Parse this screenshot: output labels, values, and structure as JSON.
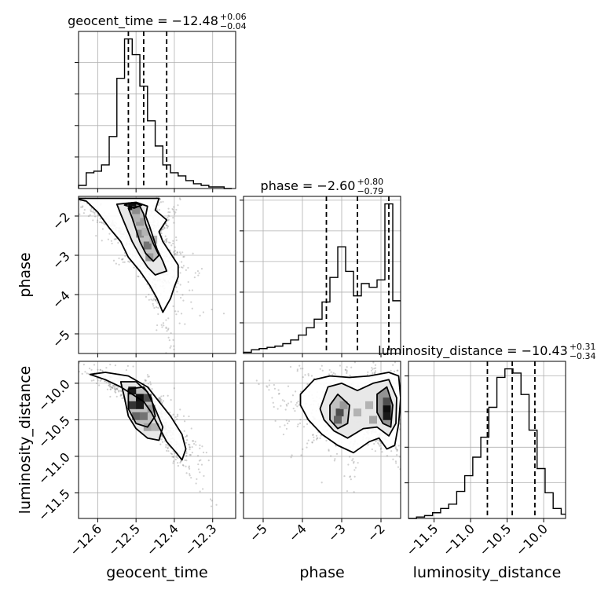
{
  "chart_data": {
    "type": "corner",
    "parameters": [
      {
        "key": "geocent_time",
        "label": "geocent_time",
        "title_prefix": "geocent_time = ",
        "median": "−12.48",
        "upper": "+0.06",
        "lower": "−0.04",
        "range": [
          -12.65,
          -12.24
        ],
        "ticks": [
          -12.6,
          -12.5,
          -12.4,
          -12.3
        ],
        "tick_labels": [
          "−12.6",
          "−12.5",
          "−12.4",
          "−12.3"
        ],
        "quantiles": [
          -12.52,
          -12.48,
          -12.42
        ],
        "hist_edges": [
          -12.65,
          -12.63,
          -12.61,
          -12.59,
          -12.57,
          -12.55,
          -12.53,
          -12.51,
          -12.49,
          -12.47,
          -12.45,
          -12.43,
          -12.41,
          -12.39,
          -12.37,
          -12.35,
          -12.33,
          -12.31,
          -12.29,
          -12.27,
          -12.25
        ],
        "hist_counts": [
          2,
          10,
          11,
          15,
          33,
          70,
          95,
          85,
          65,
          43,
          27,
          15,
          10,
          8,
          5,
          3,
          2,
          1,
          1,
          0
        ]
      },
      {
        "key": "phase",
        "label": "phase",
        "title_prefix": "phase = ",
        "median": "−2.60",
        "upper": "+0.80",
        "lower": "−0.79",
        "range": [
          -5.5,
          -1.5
        ],
        "ticks": [
          -5,
          -4,
          -3,
          -2
        ],
        "tick_labels": [
          "−5",
          "−4",
          "−3",
          "−2"
        ],
        "quantiles": [
          -3.39,
          -2.6,
          -1.8
        ],
        "hist_edges": [
          -5.5,
          -5.3,
          -5.1,
          -4.9,
          -4.7,
          -4.5,
          -4.3,
          -4.1,
          -3.9,
          -3.7,
          -3.5,
          -3.3,
          -3.1,
          -2.9,
          -2.7,
          -2.5,
          -2.3,
          -2.1,
          -1.9,
          -1.7,
          -1.5
        ],
        "hist_counts": [
          1,
          3,
          4,
          5,
          6,
          8,
          11,
          15,
          21,
          28,
          42,
          62,
          87,
          67,
          47,
          57,
          54,
          60,
          122,
          43
        ]
      },
      {
        "key": "luminosity_distance",
        "label": "luminosity_distance",
        "title_prefix": "luminosity_distance = ",
        "median": "−10.43",
        "upper": "+0.31",
        "lower": "−0.34",
        "range": [
          -11.85,
          -9.7
        ],
        "ticks": [
          -11.5,
          -11.0,
          -10.5,
          -10.0
        ],
        "tick_labels": [
          "−11.5",
          "−11.0",
          "−10.5",
          "−10.0"
        ],
        "quantiles": [
          -10.77,
          -10.43,
          -10.12
        ],
        "hist_edges": [
          -11.85,
          -11.74,
          -11.63,
          -11.52,
          -11.41,
          -11.3,
          -11.19,
          -11.08,
          -10.97,
          -10.86,
          -10.75,
          -10.64,
          -10.53,
          -10.42,
          -10.31,
          -10.2,
          -10.09,
          -9.98,
          -9.87,
          -9.76,
          -9.7
        ],
        "hist_counts": [
          0,
          1,
          2,
          4,
          7,
          10,
          19,
          30,
          43,
          57,
          78,
          99,
          105,
          102,
          87,
          62,
          35,
          18,
          7,
          3
        ]
      }
    ],
    "contours": [
      {
        "x": "geocent_time",
        "y": "phase",
        "levels": [
          [
            [
              -12.66,
              -1.55
            ],
            [
              -12.63,
              -1.62
            ],
            [
              -12.6,
              -1.9
            ],
            [
              -12.57,
              -2.3
            ],
            [
              -12.54,
              -2.65
            ],
            [
              -12.52,
              -3.05
            ],
            [
              -12.49,
              -3.4
            ],
            [
              -12.465,
              -3.75
            ],
            [
              -12.445,
              -4.1
            ],
            [
              -12.43,
              -4.45
            ],
            [
              -12.41,
              -4.1
            ],
            [
              -12.4,
              -3.8
            ],
            [
              -12.39,
              -3.55
            ],
            [
              -12.39,
              -3.25
            ],
            [
              -12.41,
              -2.95
            ],
            [
              -12.43,
              -2.65
            ],
            [
              -12.44,
              -2.4
            ],
            [
              -12.42,
              -2.1
            ],
            [
              -12.45,
              -1.85
            ],
            [
              -12.44,
              -1.55
            ]
          ],
          [
            [
              -12.55,
              -1.7
            ],
            [
              -12.54,
              -1.95
            ],
            [
              -12.525,
              -2.3
            ],
            [
              -12.51,
              -2.65
            ],
            [
              -12.49,
              -3.0
            ],
            [
              -12.47,
              -3.3
            ],
            [
              -12.45,
              -3.5
            ],
            [
              -12.42,
              -3.4
            ],
            [
              -12.43,
              -3.15
            ],
            [
              -12.445,
              -2.85
            ],
            [
              -12.455,
              -2.55
            ],
            [
              -12.465,
              -2.25
            ],
            [
              -12.475,
              -2.0
            ],
            [
              -12.47,
              -1.75
            ],
            [
              -12.5,
              -1.65
            ]
          ],
          [
            [
              -12.52,
              -1.8
            ],
            [
              -12.51,
              -2.05
            ],
            [
              -12.5,
              -2.35
            ],
            [
              -12.49,
              -2.65
            ],
            [
              -12.475,
              -2.95
            ],
            [
              -12.455,
              -3.15
            ],
            [
              -12.44,
              -3.0
            ],
            [
              -12.455,
              -2.7
            ],
            [
              -12.465,
              -2.45
            ],
            [
              -12.475,
              -2.2
            ],
            [
              -12.48,
              -1.95
            ],
            [
              -12.49,
              -1.75
            ]
          ],
          [
            [
              -12.53,
              -1.72
            ],
            [
              -12.51,
              -1.66
            ],
            [
              -12.485,
              -1.72
            ],
            [
              -12.505,
              -1.8
            ]
          ]
        ],
        "cells": [
          [
            -12.51,
            -1.75,
            0.95
          ],
          [
            -12.5,
            -1.85,
            0.45
          ],
          [
            -12.49,
            -2.15,
            0.4
          ],
          [
            -12.49,
            -2.45,
            0.45
          ],
          [
            -12.47,
            -2.75,
            0.55
          ],
          [
            -12.465,
            -3.05,
            0.4
          ],
          [
            -12.455,
            -2.6,
            0.3
          ],
          [
            -12.475,
            -2.4,
            0.3
          ],
          [
            -12.5,
            -2.05,
            0.3
          ]
        ]
      },
      {
        "x": "geocent_time",
        "y": "luminosity_distance",
        "levels": [
          [
            [
              -12.62,
              -9.88
            ],
            [
              -12.58,
              -9.95
            ],
            [
              -12.54,
              -10.05
            ],
            [
              -12.51,
              -10.15
            ],
            [
              -12.48,
              -10.25
            ],
            [
              -12.46,
              -10.4
            ],
            [
              -12.44,
              -10.6
            ],
            [
              -12.42,
              -10.8
            ],
            [
              -12.395,
              -10.95
            ],
            [
              -12.38,
              -11.05
            ],
            [
              -12.37,
              -10.9
            ],
            [
              -12.38,
              -10.7
            ],
            [
              -12.41,
              -10.45
            ],
            [
              -12.44,
              -10.25
            ],
            [
              -12.47,
              -10.05
            ],
            [
              -12.52,
              -9.9
            ],
            [
              -12.58,
              -9.85
            ]
          ],
          [
            [
              -12.54,
              -9.98
            ],
            [
              -12.53,
              -10.2
            ],
            [
              -12.52,
              -10.45
            ],
            [
              -12.5,
              -10.62
            ],
            [
              -12.47,
              -10.75
            ],
            [
              -12.44,
              -10.78
            ],
            [
              -12.43,
              -10.6
            ],
            [
              -12.45,
              -10.35
            ],
            [
              -12.47,
              -10.12
            ],
            [
              -12.5,
              -9.98
            ]
          ],
          [
            [
              -12.52,
              -10.08
            ],
            [
              -12.52,
              -10.35
            ],
            [
              -12.5,
              -10.55
            ],
            [
              -12.47,
              -10.6
            ],
            [
              -12.45,
              -10.45
            ],
            [
              -12.46,
              -10.2
            ],
            [
              -12.48,
              -10.05
            ]
          ]
        ],
        "cells": [
          [
            -12.51,
            -10.1,
            0.9
          ],
          [
            -12.49,
            -10.2,
            0.95
          ],
          [
            -12.51,
            -10.3,
            0.8
          ],
          [
            -12.49,
            -10.3,
            0.9
          ],
          [
            -12.47,
            -10.2,
            0.7
          ],
          [
            -12.5,
            -10.45,
            0.6
          ],
          [
            -12.48,
            -10.45,
            0.55
          ],
          [
            -12.46,
            -10.35,
            0.4
          ],
          [
            -12.47,
            -10.6,
            0.35
          ],
          [
            -12.45,
            -10.6,
            0.3
          ]
        ]
      },
      {
        "x": "phase",
        "y": "luminosity_distance",
        "levels": [
          [
            [
              -4.05,
              -10.15
            ],
            [
              -3.7,
              -9.95
            ],
            [
              -3.3,
              -9.9
            ],
            [
              -2.8,
              -9.92
            ],
            [
              -2.3,
              -9.9
            ],
            [
              -1.8,
              -9.85
            ],
            [
              -1.55,
              -9.9
            ],
            [
              -1.5,
              -10.2
            ],
            [
              -1.55,
              -10.55
            ],
            [
              -1.65,
              -10.85
            ],
            [
              -1.85,
              -10.9
            ],
            [
              -2.05,
              -10.75
            ],
            [
              -2.3,
              -10.8
            ],
            [
              -2.7,
              -10.95
            ],
            [
              -3.1,
              -10.85
            ],
            [
              -3.5,
              -10.7
            ],
            [
              -3.85,
              -10.5
            ],
            [
              -4.05,
              -10.3
            ]
          ],
          [
            [
              -3.55,
              -10.35
            ],
            [
              -3.35,
              -10.05
            ],
            [
              -3.0,
              -10.0
            ],
            [
              -2.6,
              -10.1
            ],
            [
              -2.2,
              -10.0
            ],
            [
              -1.8,
              -9.95
            ],
            [
              -1.6,
              -10.2
            ],
            [
              -1.62,
              -10.55
            ],
            [
              -1.8,
              -10.72
            ],
            [
              -2.1,
              -10.6
            ],
            [
              -2.45,
              -10.62
            ],
            [
              -2.85,
              -10.75
            ],
            [
              -3.2,
              -10.65
            ],
            [
              -3.45,
              -10.5
            ]
          ],
          [
            [
              -3.3,
              -10.3
            ],
            [
              -3.1,
              -10.15
            ],
            [
              -2.8,
              -10.3
            ],
            [
              -2.85,
              -10.55
            ],
            [
              -3.1,
              -10.62
            ],
            [
              -3.3,
              -10.5
            ]
          ],
          [
            [
              -2.1,
              -10.15
            ],
            [
              -1.85,
              -10.05
            ],
            [
              -1.7,
              -10.3
            ],
            [
              -1.75,
              -10.6
            ],
            [
              -1.95,
              -10.55
            ],
            [
              -2.1,
              -10.4
            ]
          ]
        ],
        "cells": [
          [
            -1.85,
            -10.35,
            0.95
          ],
          [
            -1.85,
            -10.45,
            0.9
          ],
          [
            -1.85,
            -10.25,
            0.7
          ],
          [
            -3.05,
            -10.4,
            0.7
          ],
          [
            -3.1,
            -10.5,
            0.6
          ],
          [
            -2.95,
            -10.3,
            0.4
          ],
          [
            -2.6,
            -10.4,
            0.3
          ],
          [
            -2.3,
            -10.3,
            0.3
          ],
          [
            -2.2,
            -10.5,
            0.35
          ]
        ]
      }
    ],
    "grid": true,
    "legend": "none"
  }
}
